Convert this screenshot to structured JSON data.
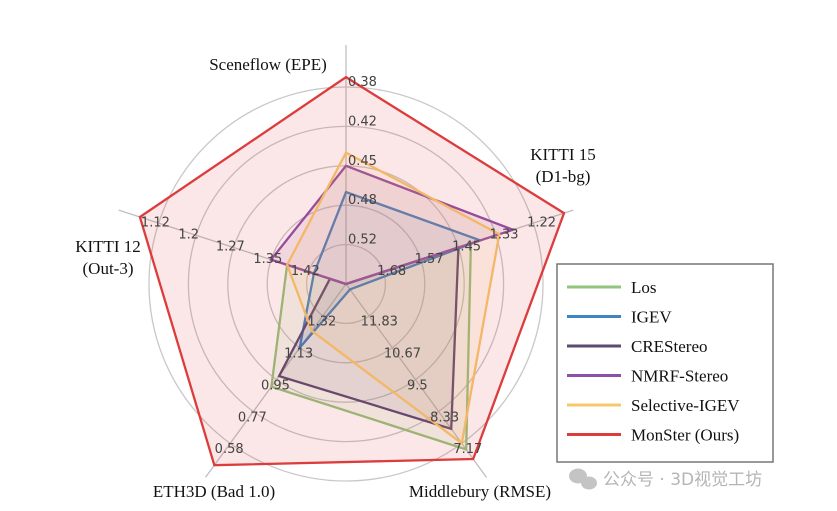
{
  "chart_data": {
    "type": "radar",
    "title": "",
    "axes": [
      {
        "label": [
          "Sceneflow (EPE)"
        ],
        "ticks": [
          "0.52",
          "0.48",
          "0.45",
          "0.42",
          "0.38"
        ],
        "tick_values": [
          0.52,
          0.48,
          0.45,
          0.42,
          0.38
        ],
        "center_value": 0.56
      },
      {
        "label": [
          "KITTI 15",
          "(D1-bg)"
        ],
        "ticks": [
          "1.68",
          "1.57",
          "1.45",
          "1.33",
          "1.22"
        ],
        "tick_values": [
          1.68,
          1.57,
          1.45,
          1.33,
          1.22
        ],
        "center_value": 1.79
      },
      {
        "label": [
          "Middlebury (RMSE)"
        ],
        "ticks": [
          "11.83",
          "10.67",
          "9.5",
          "8.33",
          "7.17"
        ],
        "tick_values": [
          11.83,
          10.67,
          9.5,
          8.33,
          7.17
        ],
        "center_value": 13.0
      },
      {
        "label": [
          "ETH3D (Bad 1.0)"
        ],
        "ticks": [
          "1.32",
          "1.13",
          "0.95",
          "0.77",
          "0.58"
        ],
        "tick_values": [
          1.32,
          1.13,
          0.95,
          0.77,
          0.58
        ],
        "center_value": 1.51
      },
      {
        "label": [
          "KITTI 12",
          "(Out-3)"
        ],
        "ticks": [
          "1.42",
          "1.35",
          "1.27",
          "1.2",
          "1.12"
        ],
        "tick_values": [
          1.42,
          1.35,
          1.27,
          1.2,
          1.12
        ],
        "center_value": 1.49
      }
    ],
    "series": [
      {
        "name": "Los",
        "color": "#93c47d",
        "values": [
          0.56,
          1.41,
          6.95,
          0.91,
          1.38
        ]
      },
      {
        "name": "IGEV",
        "color": "#3d85c6",
        "values": [
          0.47,
          1.38,
          12.8,
          1.13,
          1.43
        ]
      },
      {
        "name": "CREStereo",
        "color": "#5b4a72",
        "values": [
          0.56,
          1.45,
          7.7,
          0.97,
          1.46
        ]
      },
      {
        "name": "NMRF-Stereo",
        "color": "#8e4fa8",
        "values": [
          0.45,
          1.28,
          13.0,
          1.51,
          1.35
        ]
      },
      {
        "name": "Selective-IGEV",
        "color": "#f6c96b",
        "values": [
          0.44,
          1.32,
          7.17,
          1.23,
          1.38
        ]
      },
      {
        "name": "MonSter (Ours)",
        "color": "#dc3c3c",
        "values": [
          0.37,
          1.13,
          6.6,
          0.45,
          1.08
        ]
      }
    ],
    "grid": true,
    "legend_placement": "right"
  },
  "watermark": "公众号 · 3D视觉工坊"
}
